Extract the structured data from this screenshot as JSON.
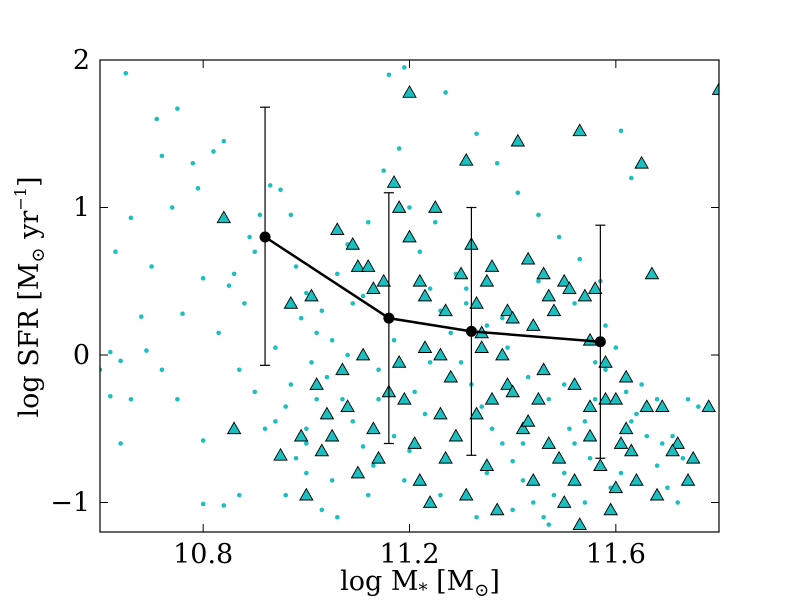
{
  "chart_data": {
    "type": "scatter",
    "title": "",
    "xlabel": "log M",
    "xlabel_sub": "*",
    "xlabel_unit": " [M",
    "xlabel_unit_close": "]",
    "ylabel": "log SFR [M",
    "ylabel_unit": " yr",
    "ylabel_exp": "−1",
    "ylabel_close": "]",
    "sun_symbol": "⊙",
    "xlim": [
      10.6,
      11.8
    ],
    "ylim": [
      -1.2,
      2.0
    ],
    "xticks": [
      10.8,
      11.2,
      11.6
    ],
    "xtick_labels": [
      "10.8",
      "11.2",
      "11.6"
    ],
    "yticks": [
      -1,
      0,
      1,
      2
    ],
    "ytick_labels": [
      "−1",
      "0",
      "1",
      "2"
    ],
    "grid": false,
    "colors": {
      "marker_fill": "#1bbfbf",
      "marker_edge": "#000000",
      "median_line": "#000000"
    },
    "series": [
      {
        "kind": "small-dots",
        "points": [
          [
            10.65,
            1.91
          ],
          [
            10.71,
            1.6
          ],
          [
            10.75,
            1.67
          ],
          [
            10.72,
            1.35
          ],
          [
            10.78,
            1.3
          ],
          [
            10.82,
            1.38
          ],
          [
            10.84,
            1.45
          ],
          [
            10.79,
            1.13
          ],
          [
            10.74,
            1.0
          ],
          [
            10.66,
            0.93
          ],
          [
            10.63,
            0.7
          ],
          [
            10.7,
            0.6
          ],
          [
            10.8,
            0.52
          ],
          [
            10.85,
            0.47
          ],
          [
            10.68,
            0.26
          ],
          [
            10.76,
            0.28
          ],
          [
            10.62,
            0.02
          ],
          [
            10.64,
            -0.04
          ],
          [
            10.69,
            0.03
          ],
          [
            10.72,
            -0.1
          ],
          [
            10.6,
            -0.1
          ],
          [
            10.62,
            -0.28
          ],
          [
            10.66,
            -0.3
          ],
          [
            10.75,
            -0.3
          ],
          [
            10.8,
            -0.58
          ],
          [
            10.64,
            -0.6
          ],
          [
            10.8,
            -1.01
          ],
          [
            10.84,
            -1.02
          ],
          [
            10.87,
            -0.95
          ],
          [
            10.88,
            0.35
          ],
          [
            10.86,
            0.55
          ],
          [
            10.9,
            0.7
          ],
          [
            10.93,
            1.15
          ],
          [
            10.95,
            1.12
          ],
          [
            10.97,
            0.95
          ],
          [
            10.98,
            0.6
          ],
          [
            11.0,
            0.42
          ],
          [
            10.99,
            0.25
          ],
          [
            11.02,
            0.15
          ],
          [
            11.05,
            0.1
          ],
          [
            11.04,
            -0.15
          ],
          [
            11.07,
            -0.3
          ],
          [
            11.09,
            -0.45
          ],
          [
            11.11,
            -0.62
          ],
          [
            11.13,
            -0.75
          ],
          [
            11.0,
            -0.8
          ],
          [
            10.96,
            -0.95
          ],
          [
            11.03,
            -1.05
          ],
          [
            11.06,
            -1.1
          ],
          [
            11.0,
            -0.6
          ],
          [
            10.97,
            -0.2
          ],
          [
            10.94,
            -0.45
          ],
          [
            11.08,
            0.0
          ],
          [
            11.1,
            0.6
          ],
          [
            11.12,
            0.9
          ],
          [
            11.15,
            1.25
          ],
          [
            11.18,
            1.4
          ],
          [
            11.2,
            1.0
          ],
          [
            11.22,
            0.7
          ],
          [
            11.24,
            0.45
          ],
          [
            11.26,
            0.3
          ],
          [
            11.28,
            0.15
          ],
          [
            11.3,
            -0.05
          ],
          [
            11.32,
            -0.2
          ],
          [
            11.34,
            -0.35
          ],
          [
            11.36,
            -0.5
          ],
          [
            11.38,
            -0.6
          ],
          [
            11.4,
            -0.72
          ],
          [
            11.42,
            -0.85
          ],
          [
            11.44,
            -1.0
          ],
          [
            11.46,
            -1.1
          ],
          [
            11.48,
            -0.95
          ],
          [
            11.5,
            -0.8
          ],
          [
            11.52,
            -0.6
          ],
          [
            11.54,
            -0.45
          ],
          [
            11.56,
            -0.3
          ],
          [
            11.58,
            -0.1
          ],
          [
            11.6,
            0.05
          ],
          [
            11.62,
            -0.25
          ],
          [
            11.64,
            -0.4
          ],
          [
            11.66,
            -0.55
          ],
          [
            11.68,
            -0.75
          ],
          [
            11.7,
            -0.9
          ],
          [
            11.72,
            -1.0
          ],
          [
            11.74,
            -0.3
          ],
          [
            11.76,
            -0.35
          ],
          [
            11.16,
            1.9
          ],
          [
            11.19,
            1.95
          ],
          [
            11.27,
            1.78
          ],
          [
            11.33,
            1.5
          ],
          [
            11.37,
            1.3
          ],
          [
            11.41,
            1.1
          ],
          [
            11.45,
            0.95
          ],
          [
            11.49,
            0.8
          ],
          [
            11.53,
            0.65
          ],
          [
            11.57,
            0.5
          ],
          [
            11.61,
            1.52
          ],
          [
            11.63,
            1.2
          ],
          [
            11.25,
            0.9
          ],
          [
            11.29,
            0.55
          ],
          [
            11.31,
            0.35
          ],
          [
            11.35,
            0.2
          ],
          [
            11.39,
            0.05
          ],
          [
            11.43,
            -0.15
          ],
          [
            11.47,
            -0.3
          ],
          [
            11.51,
            -0.5
          ],
          [
            11.55,
            -0.7
          ],
          [
            11.59,
            -0.9
          ],
          [
            11.21,
            -0.25
          ],
          [
            11.23,
            -0.4
          ],
          [
            11.17,
            -0.55
          ],
          [
            11.14,
            -0.3
          ],
          [
            11.01,
            -0.05
          ],
          [
            11.03,
            0.3
          ],
          [
            11.06,
            0.55
          ],
          [
            11.09,
            0.35
          ],
          [
            10.91,
            0.95
          ],
          [
            10.89,
            0.8
          ],
          [
            10.83,
            0.15
          ],
          [
            10.87,
            -0.1
          ],
          [
            10.9,
            -0.25
          ],
          [
            10.92,
            -0.5
          ],
          [
            10.98,
            -0.7
          ],
          [
            11.05,
            -0.85
          ],
          [
            11.12,
            -0.95
          ],
          [
            11.19,
            -0.85
          ],
          [
            11.26,
            -0.95
          ],
          [
            11.33,
            -1.1
          ],
          [
            11.4,
            -1.05
          ],
          [
            11.47,
            -1.15
          ],
          [
            11.54,
            -1.0
          ],
          [
            11.61,
            -0.8
          ],
          [
            11.68,
            -0.3
          ],
          [
            11.71,
            -0.55
          ],
          [
            11.65,
            -0.2
          ],
          [
            11.58,
            0.2
          ],
          [
            11.52,
            0.35
          ],
          [
            11.45,
            0.5
          ],
          [
            11.38,
            0.25
          ],
          [
            11.31,
            0.45
          ],
          [
            11.24,
            -0.05
          ],
          [
            11.17,
            0.1
          ],
          [
            11.11,
            0.4
          ],
          [
            11.08,
            0.75
          ],
          [
            10.94,
            0.05
          ],
          [
            10.96,
            -0.35
          ],
          [
            11.0,
            -0.5
          ],
          [
            11.02,
            -0.3
          ],
          [
            11.14,
            -0.1
          ],
          [
            11.2,
            -0.65
          ],
          [
            11.27,
            -0.7
          ],
          [
            11.35,
            -0.8
          ],
          [
            11.42,
            -0.6
          ],
          [
            11.5,
            -0.2
          ],
          [
            11.56,
            -0.05
          ],
          [
            11.63,
            -0.45
          ],
          [
            11.69,
            -0.6
          ],
          [
            11.73,
            -0.7
          ]
        ]
      },
      {
        "kind": "triangles",
        "points": [
          [
            10.84,
            0.93
          ],
          [
            10.86,
            -0.5
          ],
          [
            10.95,
            -0.68
          ],
          [
            10.99,
            -0.55
          ],
          [
            11.0,
            -0.95
          ],
          [
            11.03,
            -0.65
          ],
          [
            11.04,
            -0.4
          ],
          [
            11.06,
            0.85
          ],
          [
            11.09,
            0.75
          ],
          [
            11.1,
            0.6
          ],
          [
            11.12,
            0.6
          ],
          [
            11.13,
            0.45
          ],
          [
            11.15,
            0.5
          ],
          [
            11.17,
            1.17
          ],
          [
            11.18,
            1.0
          ],
          [
            11.2,
            1.78
          ],
          [
            11.2,
            0.8
          ],
          [
            11.22,
            0.5
          ],
          [
            11.23,
            0.4
          ],
          [
            11.25,
            1.0
          ],
          [
            11.26,
            0.0
          ],
          [
            11.28,
            -0.15
          ],
          [
            11.3,
            0.55
          ],
          [
            11.31,
            1.32
          ],
          [
            11.32,
            0.75
          ],
          [
            11.33,
            0.35
          ],
          [
            11.34,
            0.15
          ],
          [
            11.36,
            0.6
          ],
          [
            11.36,
            -0.3
          ],
          [
            11.38,
            0.0
          ],
          [
            11.39,
            0.3
          ],
          [
            11.4,
            0.25
          ],
          [
            11.41,
            1.45
          ],
          [
            11.43,
            0.65
          ],
          [
            11.44,
            0.2
          ],
          [
            11.46,
            0.55
          ],
          [
            11.47,
            0.4
          ],
          [
            11.48,
            0.3
          ],
          [
            11.5,
            0.5
          ],
          [
            11.51,
            0.45
          ],
          [
            11.53,
            1.52
          ],
          [
            11.54,
            0.4
          ],
          [
            11.55,
            0.1
          ],
          [
            11.56,
            0.45
          ],
          [
            11.58,
            -0.3
          ],
          [
            11.6,
            -0.3
          ],
          [
            11.62,
            -0.5
          ],
          [
            11.63,
            -0.65
          ],
          [
            11.65,
            1.3
          ],
          [
            11.67,
            0.55
          ],
          [
            11.69,
            -0.35
          ],
          [
            11.72,
            -0.6
          ],
          [
            11.75,
            -0.7
          ],
          [
            11.78,
            -0.35
          ],
          [
            11.8,
            1.8
          ],
          [
            11.02,
            -0.2
          ],
          [
            11.05,
            -0.55
          ],
          [
            11.07,
            -0.1
          ],
          [
            11.08,
            -0.35
          ],
          [
            11.1,
            -0.8
          ],
          [
            11.14,
            -0.7
          ],
          [
            11.16,
            -0.25
          ],
          [
            11.19,
            -0.3
          ],
          [
            11.21,
            -0.6
          ],
          [
            11.22,
            -0.85
          ],
          [
            11.24,
            -1.0
          ],
          [
            11.27,
            -0.7
          ],
          [
            11.29,
            -0.55
          ],
          [
            11.31,
            -0.95
          ],
          [
            11.33,
            -0.4
          ],
          [
            11.35,
            -0.75
          ],
          [
            11.37,
            -1.05
          ],
          [
            11.39,
            -0.2
          ],
          [
            11.42,
            -0.5
          ],
          [
            11.44,
            -0.85
          ],
          [
            11.45,
            -0.3
          ],
          [
            11.47,
            -0.6
          ],
          [
            11.49,
            -0.7
          ],
          [
            11.5,
            -1.0
          ],
          [
            11.52,
            -0.85
          ],
          [
            11.53,
            -1.15
          ],
          [
            11.55,
            -0.55
          ],
          [
            11.57,
            -0.75
          ],
          [
            11.59,
            -1.05
          ],
          [
            11.61,
            -0.6
          ],
          [
            11.64,
            -0.85
          ],
          [
            11.66,
            -0.35
          ],
          [
            11.68,
            -0.95
          ],
          [
            11.71,
            -0.65
          ],
          [
            11.74,
            -0.85
          ],
          [
            11.18,
            -0.05
          ],
          [
            11.23,
            0.05
          ],
          [
            11.26,
            -0.4
          ],
          [
            11.34,
            0.05
          ],
          [
            11.4,
            -0.25
          ],
          [
            11.46,
            -0.1
          ],
          [
            11.52,
            -0.2
          ],
          [
            11.58,
            -0.05
          ],
          [
            11.62,
            -0.15
          ],
          [
            10.97,
            0.35
          ],
          [
            11.01,
            0.4
          ],
          [
            11.11,
            0.0
          ],
          [
            11.13,
            -0.5
          ],
          [
            11.27,
            0.3
          ],
          [
            11.35,
            0.5
          ],
          [
            11.43,
            -0.45
          ],
          [
            11.55,
            -0.35
          ],
          [
            11.6,
            -0.9
          ]
        ]
      },
      {
        "kind": "median",
        "points": [
          [
            10.92,
            0.8
          ],
          [
            11.16,
            0.25
          ],
          [
            11.32,
            0.16
          ],
          [
            11.57,
            0.09
          ]
        ],
        "err_low": [
          -0.07,
          -0.6,
          -0.68,
          -0.7
        ],
        "err_high": [
          1.68,
          1.1,
          1.0,
          0.88
        ]
      }
    ]
  }
}
